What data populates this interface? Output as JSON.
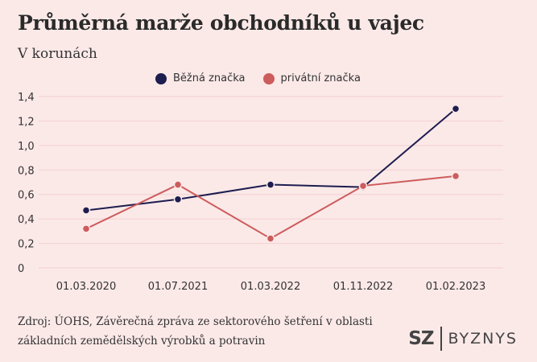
{
  "chart_data": {
    "type": "line",
    "title": "Průměrná marže obchodníků u vajec",
    "subtitle": "V korunách",
    "categories": [
      "01.03.2020",
      "01.07.2021",
      "01.03.2022",
      "01.11.2022",
      "01.02.2023"
    ],
    "y_ticks": [
      "0",
      "0,2",
      "0,4",
      "0,6",
      "0,8",
      "1,0",
      "1,2",
      "1,4"
    ],
    "ylim": [
      0,
      1.4
    ],
    "grid": true,
    "legend_position": "top",
    "series": [
      {
        "name": "Běžná značka",
        "color": "#1d1d4f",
        "values": [
          0.47,
          0.56,
          0.68,
          0.66,
          1.3
        ]
      },
      {
        "name": "privátní značka",
        "color": "#cd5c5c",
        "values": [
          0.32,
          0.68,
          0.24,
          0.67,
          0.75
        ]
      }
    ]
  },
  "source": {
    "line1": "Zdroj: ÚOHS, Závěrečná zpráva ze sektorového šetření v oblasti",
    "line2": "základních zemědělských výrobků a potravin"
  },
  "brand": {
    "sz": "SZ",
    "byznys": "BYZNYS"
  },
  "colors": {
    "background": "#fbe9e8",
    "grid": "#f3cfcf"
  }
}
